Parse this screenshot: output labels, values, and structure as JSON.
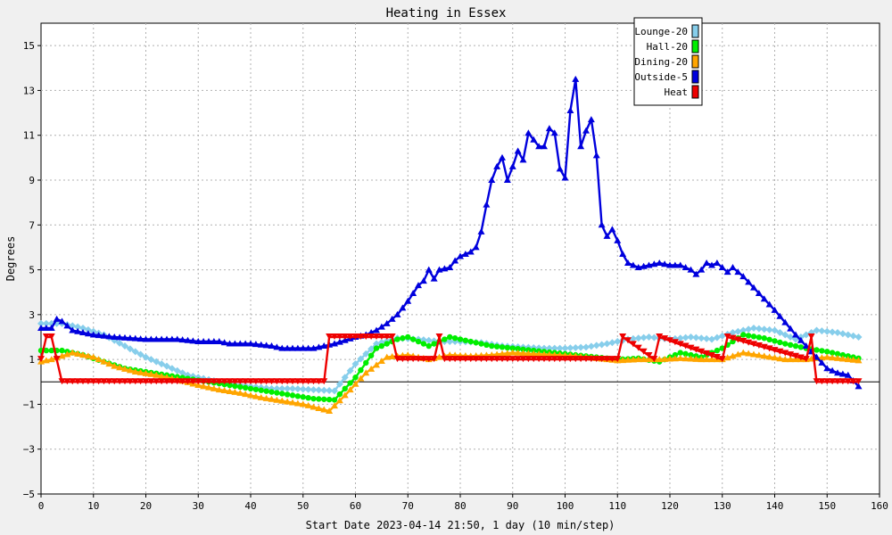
{
  "chart_data": {
    "type": "line",
    "title": "Heating in Essex",
    "xlabel": "Start Date 2023-04-14 21:50, 1 day (10 min/step)",
    "ylabel": "Degrees",
    "xlim": [
      0,
      160
    ],
    "ylim": [
      -5,
      16
    ],
    "x_ticks": [
      0,
      10,
      20,
      30,
      40,
      50,
      60,
      70,
      80,
      90,
      100,
      110,
      120,
      130,
      140,
      150,
      160
    ],
    "y_ticks": [
      -5,
      -3,
      -1,
      1,
      3,
      5,
      7,
      9,
      11,
      13,
      15
    ],
    "grid": true,
    "legend_position": "top-right",
    "series": [
      {
        "name": "Lounge-20",
        "color": "#87ceeb",
        "marker": "diamond",
        "x": [
          0,
          4,
          8,
          12,
          16,
          20,
          24,
          28,
          32,
          36,
          40,
          44,
          48,
          52,
          56,
          60,
          64,
          68,
          72,
          76,
          80,
          84,
          88,
          92,
          96,
          100,
          104,
          108,
          112,
          116,
          120,
          124,
          128,
          132,
          136,
          140,
          144,
          148,
          152,
          156
        ],
        "y": [
          2.6,
          2.6,
          2.4,
          2.1,
          1.6,
          1.1,
          0.7,
          0.3,
          0.1,
          -0.1,
          -0.2,
          -0.3,
          -0.3,
          -0.35,
          -0.4,
          0.8,
          1.7,
          1.95,
          1.9,
          1.8,
          1.8,
          1.75,
          1.6,
          1.55,
          1.5,
          1.5,
          1.55,
          1.7,
          1.9,
          2.0,
          1.9,
          2.0,
          1.9,
          2.2,
          2.4,
          2.3,
          1.9,
          2.3,
          2.2,
          2.0
        ]
      },
      {
        "name": "Hall-20",
        "color": "#00ee00",
        "marker": "circle",
        "x": [
          0,
          4,
          8,
          12,
          16,
          20,
          24,
          28,
          32,
          36,
          40,
          44,
          48,
          52,
          56,
          60,
          64,
          68,
          70,
          74,
          78,
          82,
          86,
          90,
          94,
          98,
          102,
          106,
          110,
          114,
          118,
          122,
          126,
          130,
          134,
          138,
          142,
          146,
          150,
          156
        ],
        "y": [
          1.4,
          1.4,
          1.2,
          0.9,
          0.6,
          0.45,
          0.3,
          0.15,
          0.0,
          -0.15,
          -0.3,
          -0.45,
          -0.6,
          -0.75,
          -0.8,
          0.2,
          1.5,
          1.9,
          2.0,
          1.6,
          2.0,
          1.8,
          1.6,
          1.5,
          1.4,
          1.3,
          1.2,
          1.1,
          1.0,
          1.05,
          0.9,
          1.3,
          1.1,
          1.5,
          2.1,
          1.95,
          1.7,
          1.5,
          1.35,
          1.05
        ]
      },
      {
        "name": "Dining-20",
        "color": "#ffa500",
        "marker": "triangle",
        "x": [
          0,
          2,
          6,
          10,
          14,
          18,
          22,
          26,
          30,
          34,
          38,
          42,
          46,
          50,
          55,
          58,
          62,
          66,
          70,
          74,
          78,
          82,
          86,
          90,
          94,
          98,
          102,
          106,
          110,
          114,
          118,
          122,
          126,
          130,
          134,
          138,
          142,
          146,
          150,
          156
        ],
        "y": [
          0.9,
          1.0,
          1.3,
          1.1,
          0.7,
          0.45,
          0.3,
          0.1,
          -0.15,
          -0.35,
          -0.5,
          -0.7,
          -0.85,
          -1.0,
          -1.3,
          -0.6,
          0.4,
          1.1,
          1.2,
          1.0,
          1.2,
          1.15,
          1.2,
          1.3,
          1.25,
          1.2,
          1.15,
          1.05,
          0.95,
          1.0,
          1.0,
          1.05,
          1.0,
          1.0,
          1.3,
          1.15,
          1.0,
          1.0,
          1.1,
          0.95
        ]
      },
      {
        "name": "Outside-5",
        "color": "#0000dd",
        "marker": "triangle",
        "x": [
          0,
          2,
          3,
          4,
          6,
          10,
          14,
          20,
          26,
          30,
          34,
          36,
          40,
          44,
          46,
          48,
          52,
          56,
          60,
          62,
          64,
          66,
          68,
          70,
          72,
          73,
          74,
          75,
          76,
          78,
          79,
          80,
          82,
          83,
          84,
          85,
          86,
          87,
          88,
          89,
          90,
          91,
          92,
          93,
          94,
          95,
          96,
          97,
          98,
          99,
          100,
          101,
          102,
          103,
          104,
          105,
          106,
          107,
          108,
          109,
          110,
          111,
          112,
          113,
          114,
          116,
          118,
          120,
          122,
          123,
          124,
          125,
          126,
          127,
          128,
          129,
          130,
          131,
          132,
          134,
          136,
          140,
          144,
          148,
          150,
          152,
          154,
          156
        ],
        "y": [
          2.4,
          2.4,
          2.8,
          2.7,
          2.3,
          2.1,
          2.0,
          1.9,
          1.9,
          1.8,
          1.8,
          1.7,
          1.7,
          1.6,
          1.5,
          1.5,
          1.5,
          1.7,
          2.0,
          2.1,
          2.3,
          2.6,
          3.0,
          3.6,
          4.3,
          4.5,
          5.0,
          4.6,
          5.0,
          5.1,
          5.4,
          5.6,
          5.8,
          6.0,
          6.7,
          7.9,
          9.0,
          9.6,
          10.0,
          9.0,
          9.6,
          10.3,
          9.9,
          11.1,
          10.8,
          10.5,
          10.5,
          11.3,
          11.1,
          9.5,
          9.1,
          12.1,
          13.5,
          10.5,
          11.2,
          11.7,
          10.1,
          7.0,
          6.5,
          6.8,
          6.3,
          5.7,
          5.3,
          5.2,
          5.1,
          5.2,
          5.3,
          5.2,
          5.2,
          5.1,
          5.0,
          4.8,
          5.0,
          5.3,
          5.2,
          5.3,
          5.1,
          4.9,
          5.1,
          4.7,
          4.2,
          3.2,
          2.1,
          1.1,
          0.6,
          0.4,
          0.3,
          -0.2
        ]
      },
      {
        "name": "Heat",
        "color": "#ee0000",
        "marker": "inverted-triangle",
        "x": [
          0,
          1,
          2,
          3,
          4,
          54,
          55,
          67,
          68,
          75,
          76,
          77,
          110,
          111,
          117,
          118,
          130,
          131,
          146,
          147,
          148,
          156
        ],
        "y": [
          1,
          2,
          2,
          1,
          0,
          0,
          2,
          2,
          1,
          1,
          2,
          1,
          1,
          2,
          1,
          2,
          1,
          2,
          1,
          2,
          0,
          0
        ]
      }
    ]
  }
}
